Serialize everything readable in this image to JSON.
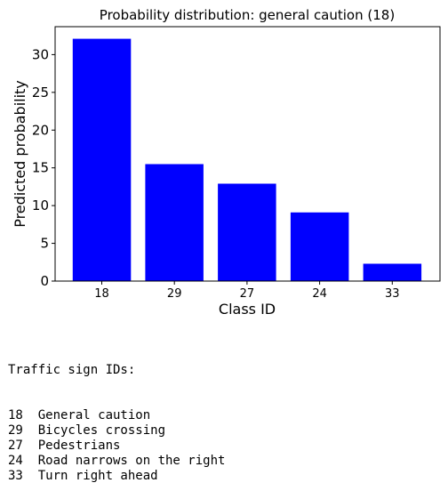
{
  "chart_data": {
    "type": "bar",
    "title": "Probability distribution: general caution (18)",
    "xlabel": "Class ID",
    "ylabel": "Predicted probability",
    "categories": [
      "18",
      "29",
      "27",
      "24",
      "33"
    ],
    "values": [
      32.1,
      15.5,
      12.9,
      9.1,
      2.3
    ],
    "ylim": [
      0,
      33.7
    ],
    "yticks": [
      0,
      5,
      10,
      15,
      20,
      25,
      30
    ],
    "bar_color": "#0000ff",
    "grid": false
  },
  "legend": {
    "heading": "Traffic sign IDs:",
    "entries": [
      {
        "id": "18",
        "name": "General caution"
      },
      {
        "id": "29",
        "name": "Bicycles crossing"
      },
      {
        "id": "27",
        "name": "Pedestrians"
      },
      {
        "id": "24",
        "name": "Road narrows on the right"
      },
      {
        "id": "33",
        "name": "Turn right ahead"
      }
    ]
  }
}
